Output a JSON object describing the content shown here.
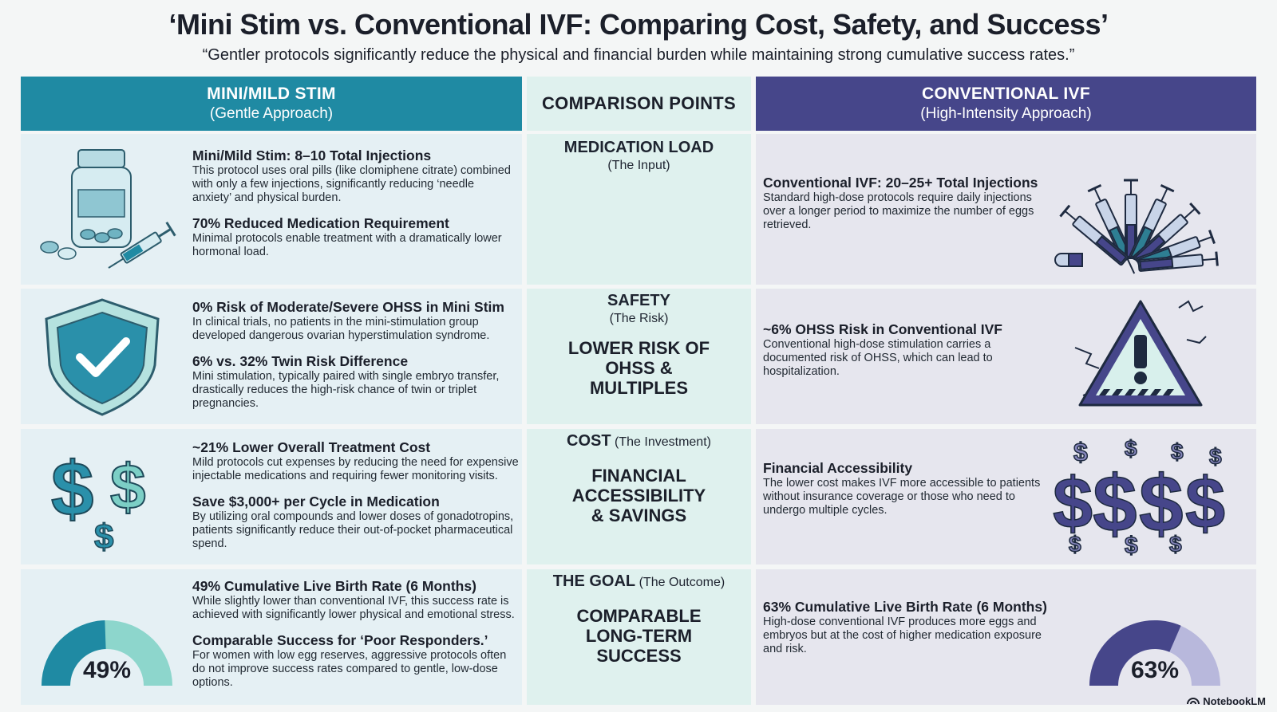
{
  "header": {
    "title": "‘Mini Stim vs. Conventional IVF: Comparing Cost, Safety, and Success’",
    "subtitle": "“Gentler protocols significantly reduce the physical and financial burden while maintaining strong cumulative success rates.”"
  },
  "columns": {
    "left": {
      "title": "MINI/MILD STIM",
      "sub": "(Gentle Approach)"
    },
    "mid": {
      "title": "COMPARISON POINTS"
    },
    "right": {
      "title": "CONVENTIONAL IVF",
      "sub": "(High-Intensity Approach)"
    }
  },
  "rows": [
    {
      "left": [
        {
          "title": "Mini/Mild Stim: 8–10 Total Injections",
          "desc": "This protocol uses oral pills (like clomiphene citrate) combined with only a few injections, significantly reducing ‘needle anxiety’ and physical burden."
        },
        {
          "title": "70% Reduced Medication Requirement",
          "desc": "Minimal protocols enable treatment with a dramatically lower hormonal load."
        }
      ],
      "mid": {
        "label": "MEDICATION LOAD",
        "sub": "(The Input)",
        "big": ""
      },
      "right": [
        {
          "title": "Conventional IVF: 20–25+ Total Injections",
          "desc": "Standard high-dose protocols require daily injections over a longer period to maximize the number of eggs retrieved."
        }
      ],
      "left_icon": "pill-bottle-syringe-icon",
      "right_icon": "syringes-icon"
    },
    {
      "left": [
        {
          "title": "0% Risk of Moderate/Severe OHSS in Mini Stim",
          "desc": "In clinical trials, no patients in the mini-stimulation group developed dangerous ovarian hyperstimulation syndrome."
        },
        {
          "title": "6% vs. 32% Twin Risk Difference",
          "desc": "Mini stimulation, typically paired with single embryo transfer, drastically reduces the high-risk chance of twin or triplet pregnancies."
        }
      ],
      "mid": {
        "label": "SAFETY",
        "sub": "(The Risk)",
        "big": "LOWER RISK OF OHSS & MULTIPLES"
      },
      "right": [
        {
          "title": "~6% OHSS Risk in Conventional IVF",
          "desc": "Conventional high-dose stimulation carries a documented risk of OHSS, which can lead to hospitalization."
        }
      ],
      "left_icon": "shield-check-icon",
      "right_icon": "warning-icon"
    },
    {
      "left": [
        {
          "title": "~21% Lower Overall Treatment Cost",
          "desc": "Mild protocols cut expenses by reducing the need for expensive injectable medications and requiring fewer monitoring visits."
        },
        {
          "title": "Save $3,000+ per Cycle in Medication",
          "desc": "By utilizing oral compounds and lower doses of gonadotropins, patients significantly reduce their out-of-pocket pharmaceutical spend."
        }
      ],
      "mid": {
        "label": "COST",
        "sub": "(The Investment)",
        "big": "FINANCIAL ACCESSIBILITY & SAVINGS"
      },
      "right": [
        {
          "title": "Financial Accessibility",
          "desc": "The lower cost makes IVF more accessible to patients without insurance coverage or those who need to undergo multiple cycles."
        }
      ],
      "left_icon": "dollar-icon",
      "right_icon": "dollars-icon"
    },
    {
      "left": [
        {
          "title": "49% Cumulative Live Birth Rate (6 Months)",
          "desc": "While slightly lower than conventional IVF, this success rate is achieved with significantly lower physical and emotional stress."
        },
        {
          "title": "Comparable Success for ‘Poor Responders.’",
          "desc": "For women with low egg reserves, aggressive protocols often do not improve success rates compared to gentle, low-dose options."
        }
      ],
      "mid": {
        "label": "THE GOAL",
        "sub": "(The Outcome)",
        "big": "COMPARABLE LONG-TERM SUCCESS"
      },
      "right": [
        {
          "title": "63% Cumulative Live Birth Rate (6 Months)",
          "desc": "High-dose conventional IVF produces more eggs and embryos but at the cost of higher medication exposure and risk."
        }
      ],
      "left_gauge": {
        "label": "49%",
        "value": 0.49
      },
      "right_gauge": {
        "label": "63%",
        "value": 0.63
      }
    }
  ],
  "colors": {
    "teal": "#1f8aa3",
    "navy": "#46468a",
    "mint": "#dff1ee"
  },
  "footer": {
    "brand": "NotebookLM"
  }
}
